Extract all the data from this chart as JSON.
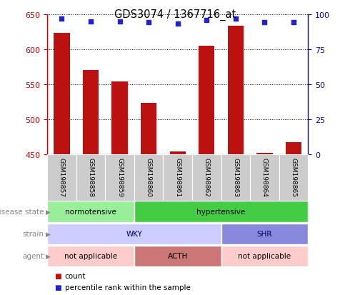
{
  "title": "GDS3074 / 1367716_at",
  "samples": [
    "GSM198857",
    "GSM198858",
    "GSM198859",
    "GSM198860",
    "GSM198861",
    "GSM198862",
    "GSM198863",
    "GSM198864",
    "GSM198865"
  ],
  "counts": [
    623,
    570,
    554,
    524,
    454,
    605,
    633,
    452,
    468
  ],
  "percentile_ranks": [
    97,
    95,
    95,
    94,
    93,
    96,
    97,
    94,
    94
  ],
  "ylim_left": [
    450,
    650
  ],
  "ylim_right": [
    0,
    100
  ],
  "yticks_left": [
    450,
    500,
    550,
    600,
    650
  ],
  "yticks_right": [
    0,
    25,
    50,
    75,
    100
  ],
  "bar_color": "#bb1111",
  "dot_color": "#2222cc",
  "bar_bottom": 450,
  "disease_state_groups": [
    {
      "start": 0,
      "end": 3,
      "color": "#99ee99",
      "label": "normotensive"
    },
    {
      "start": 3,
      "end": 9,
      "color": "#44cc44",
      "label": "hypertensive"
    }
  ],
  "strain_groups": [
    {
      "start": 0,
      "end": 6,
      "color": "#ccccff",
      "label": "WKY"
    },
    {
      "start": 6,
      "end": 9,
      "color": "#8888dd",
      "label": "SHR"
    }
  ],
  "agent_groups": [
    {
      "start": 0,
      "end": 3,
      "color": "#ffcccc",
      "label": "not applicable"
    },
    {
      "start": 3,
      "end": 6,
      "color": "#cc7777",
      "label": "ACTH"
    },
    {
      "start": 6,
      "end": 9,
      "color": "#ffcccc",
      "label": "not applicable"
    }
  ],
  "row_labels": [
    "disease state",
    "strain",
    "agent"
  ],
  "left_axis_color": "#cc0000",
  "right_axis_color": "#0000cc",
  "bar_border_color": "#ffffff",
  "background_color": "#ffffff",
  "label_color": "#888888",
  "legend_items": [
    {
      "color": "#bb1111",
      "label": "count"
    },
    {
      "color": "#2222cc",
      "label": "percentile rank within the sample"
    }
  ]
}
